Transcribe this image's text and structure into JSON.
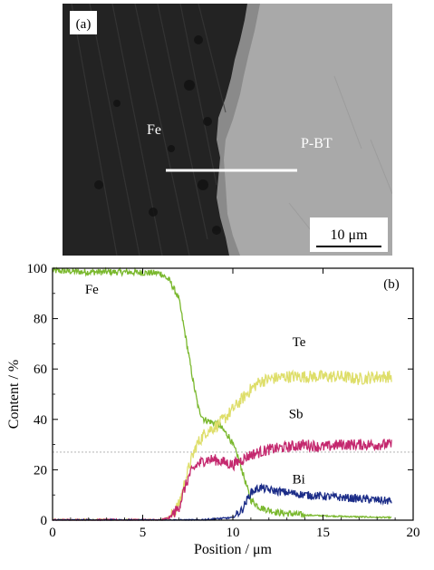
{
  "panel_a": {
    "label": "(a)",
    "labels": {
      "left": "Fe",
      "right": "P-BT"
    },
    "scale_bar": "10 μm",
    "colors": {
      "dark_region": "#232323",
      "light_region": "#a9a9a9",
      "line": "#ffffff"
    }
  },
  "panel_b": {
    "label": "(b)"
  },
  "chart_data": {
    "type": "line",
    "xlabel": "Position / μm",
    "ylabel": "Content / %",
    "xlim": [
      0,
      20
    ],
    "ylim": [
      0,
      100
    ],
    "x_ticks": [
      0,
      5,
      10,
      15,
      20
    ],
    "y_ticks": [
      0,
      20,
      40,
      60,
      80,
      100
    ],
    "grid": false,
    "legend": "inline labels",
    "reference_line_y": 27,
    "series": [
      {
        "name": "Fe",
        "color": "#7ab82e",
        "points": [
          [
            0,
            99
          ],
          [
            2,
            98.5
          ],
          [
            4,
            98.5
          ],
          [
            6,
            98
          ],
          [
            6.5,
            95
          ],
          [
            7,
            88
          ],
          [
            7.4,
            72
          ],
          [
            7.8,
            55
          ],
          [
            8.1,
            44
          ],
          [
            8.4,
            40
          ],
          [
            8.8,
            39
          ],
          [
            9.2,
            38
          ],
          [
            9.8,
            33
          ],
          [
            10.3,
            25
          ],
          [
            10.7,
            15
          ],
          [
            11.0,
            8
          ],
          [
            11.5,
            5
          ],
          [
            12.5,
            3
          ],
          [
            14,
            2
          ],
          [
            16,
            1.5
          ],
          [
            18.8,
            1
          ]
        ]
      },
      {
        "name": "Te",
        "color": "#dede6a",
        "points": [
          [
            0,
            0
          ],
          [
            6,
            0
          ],
          [
            6.5,
            1
          ],
          [
            7,
            6
          ],
          [
            7.3,
            14
          ],
          [
            7.6,
            22
          ],
          [
            8,
            30
          ],
          [
            8.5,
            35
          ],
          [
            9,
            37
          ],
          [
            9.5,
            40
          ],
          [
            10,
            44
          ],
          [
            10.5,
            48
          ],
          [
            11,
            52
          ],
          [
            11.5,
            55
          ],
          [
            12,
            56
          ],
          [
            13,
            57
          ],
          [
            14,
            57
          ],
          [
            15,
            57
          ],
          [
            16,
            57
          ],
          [
            17,
            56
          ],
          [
            18,
            57
          ],
          [
            18.8,
            57
          ]
        ]
      },
      {
        "name": "Sb",
        "color": "#c4286e",
        "points": [
          [
            0,
            0
          ],
          [
            6,
            0
          ],
          [
            6.5,
            1
          ],
          [
            7,
            5
          ],
          [
            7.3,
            12
          ],
          [
            7.6,
            18
          ],
          [
            8,
            22
          ],
          [
            8.5,
            24
          ],
          [
            9,
            24
          ],
          [
            9.5,
            23
          ],
          [
            10,
            22
          ],
          [
            10.5,
            24
          ],
          [
            11,
            26
          ],
          [
            11.5,
            27
          ],
          [
            12,
            28
          ],
          [
            13,
            29
          ],
          [
            14,
            30
          ],
          [
            15,
            29
          ],
          [
            16,
            30
          ],
          [
            17,
            30
          ],
          [
            18,
            30
          ],
          [
            18.8,
            30
          ]
        ]
      },
      {
        "name": "Bi",
        "color": "#1c2d88",
        "points": [
          [
            0,
            0
          ],
          [
            6,
            0
          ],
          [
            8,
            0
          ],
          [
            9,
            0.5
          ],
          [
            10,
            1
          ],
          [
            10.5,
            4
          ],
          [
            11,
            11
          ],
          [
            11.5,
            13
          ],
          [
            12,
            12
          ],
          [
            13,
            11
          ],
          [
            14,
            10
          ],
          [
            15,
            9.5
          ],
          [
            16,
            9
          ],
          [
            17,
            8.5
          ],
          [
            18,
            8
          ],
          [
            18.8,
            7.5
          ]
        ]
      }
    ],
    "series_labels": [
      {
        "name": "Fe",
        "x": 1.8,
        "y": 90
      },
      {
        "name": "Te",
        "x": 13.3,
        "y": 69
      },
      {
        "name": "Sb",
        "x": 13.1,
        "y": 40.5
      },
      {
        "name": "Bi",
        "x": 13.3,
        "y": 14.5
      }
    ]
  }
}
